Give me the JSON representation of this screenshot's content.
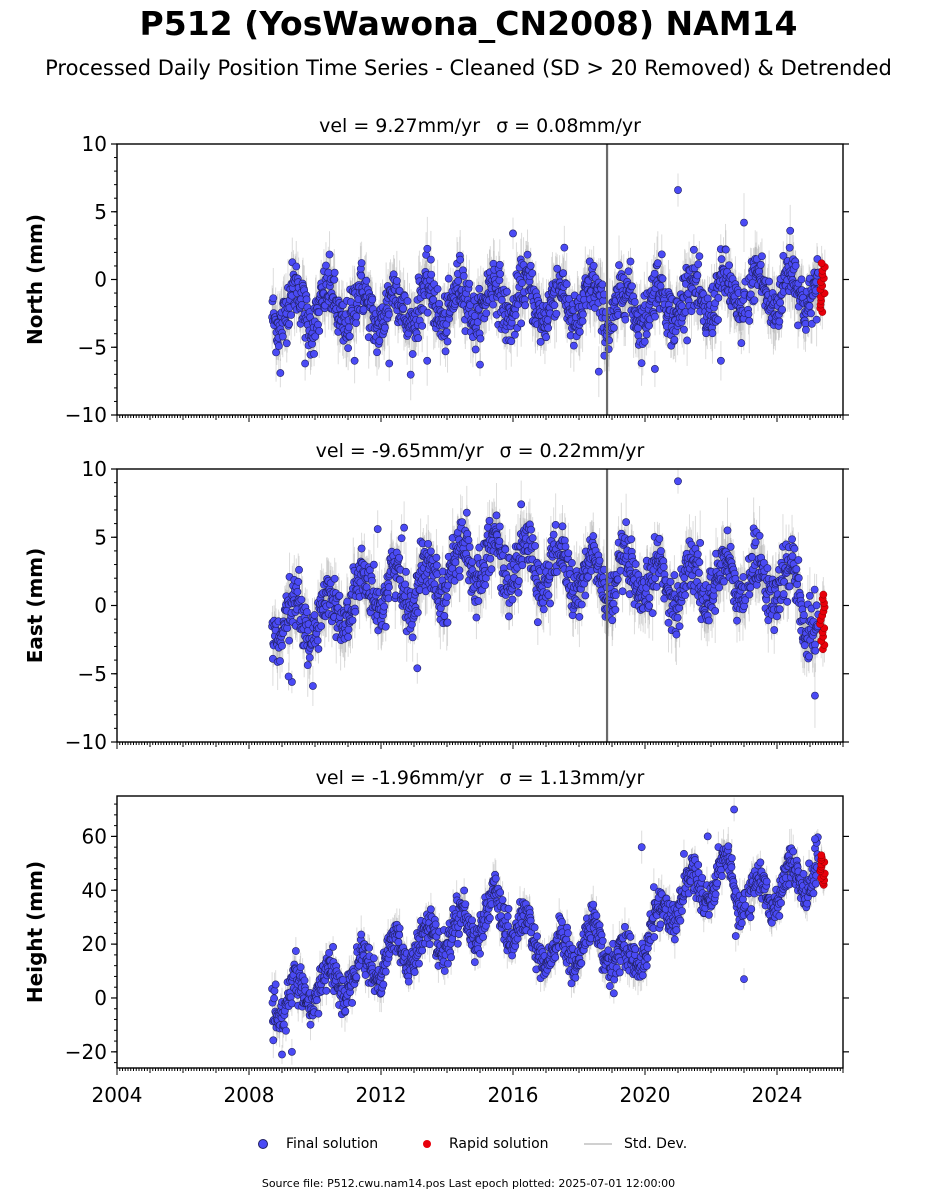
{
  "title": "P512 (YosWawona_CN2008) NAM14",
  "subtitle": "Processed Daily Position Time Series - Cleaned (SD > 20 Removed) & Detrended",
  "colors": {
    "final": "#4a4af5",
    "final_edge": "#202060",
    "rapid": "#e8000b",
    "std": "#9a9a9a",
    "axis": "#000000"
  },
  "legend": {
    "final_label": "Final solution",
    "rapid_label": "Rapid solution",
    "std_label": "Std. Dev."
  },
  "source_note": "Source file: P512.cwu.nam14.pos  Last epoch plotted: 2025-07-01 12:00:00",
  "chart_data": [
    {
      "type": "scatter",
      "panel": "north",
      "title_pre": "vel = 9.27mm/yr",
      "title_sigma": "σ = 0.08mm/yr",
      "ylabel": "North (mm)",
      "xlim": [
        2004.0,
        2026.0
      ],
      "ylim": [
        -10,
        10
      ],
      "yticks": [
        -10,
        -5,
        0,
        5,
        10
      ],
      "yticklabels": [
        "−10",
        "−5",
        "0",
        "5",
        "10"
      ],
      "show_xticklabels": false,
      "series": [
        {
          "role": "final",
          "x_start": 2008.7,
          "x_end": 2025.25,
          "trend_knots": [
            [
              2008.7,
              -2.0
            ],
            [
              2012.0,
              -2.2
            ],
            [
              2016.0,
              -1.5
            ],
            [
              2019.0,
              -2.0
            ],
            [
              2021.5,
              -1.5
            ],
            [
              2025.25,
              -0.5
            ]
          ],
          "seasonal_amplitude": 1.5,
          "noise": 1.0,
          "std_dev": 1.6,
          "outliers": [
            [
              2008.95,
              -6.9
            ],
            [
              2009.7,
              -6.2
            ],
            [
              2011.2,
              -6.0
            ],
            [
              2012.25,
              -6.2
            ],
            [
              2013.4,
              -6.0
            ],
            [
              2018.6,
              -6.8
            ],
            [
              2020.3,
              -6.6
            ],
            [
              2021.0,
              6.6
            ],
            [
              2022.3,
              -6.0
            ],
            [
              2023.0,
              4.2
            ],
            [
              2024.4,
              3.6
            ],
            [
              2016.0,
              3.4
            ]
          ]
        },
        {
          "role": "rapid",
          "x_start": 2025.3,
          "x_end": 2025.45,
          "y_min": -2.4,
          "y_max": 1.2
        }
      ],
      "spike": {
        "x": 2018.85,
        "y_low": -10,
        "y_high": 10
      }
    },
    {
      "type": "scatter",
      "panel": "east",
      "title_pre": "vel = -9.65mm/yr",
      "title_sigma": "σ = 0.22mm/yr",
      "ylabel": "East (mm)",
      "xlim": [
        2004.0,
        2026.0
      ],
      "ylim": [
        -10,
        10
      ],
      "yticks": [
        -10,
        -5,
        0,
        5,
        10
      ],
      "yticklabels": [
        "−10",
        "−5",
        "0",
        "5",
        "10"
      ],
      "show_xticklabels": false,
      "series": [
        {
          "role": "final",
          "x_start": 2008.7,
          "x_end": 2025.25,
          "trend_knots": [
            [
              2008.7,
              -1.2
            ],
            [
              2010.0,
              -1.0
            ],
            [
              2011.5,
              0.8
            ],
            [
              2013.0,
              1.5
            ],
            [
              2015.0,
              3.5
            ],
            [
              2016.5,
              3.0
            ],
            [
              2018.5,
              2.0
            ],
            [
              2021.0,
              1.5
            ],
            [
              2023.0,
              2.0
            ],
            [
              2024.5,
              1.5
            ],
            [
              2025.25,
              -2.0
            ]
          ],
          "seasonal_amplitude": 1.6,
          "noise": 1.0,
          "std_dev": 1.6,
          "outliers": [
            [
              2009.3,
              -5.6
            ],
            [
              2009.2,
              -5.2
            ],
            [
              2011.9,
              5.6
            ],
            [
              2012.7,
              5.7
            ],
            [
              2013.1,
              -4.6
            ],
            [
              2014.6,
              6.8
            ],
            [
              2015.5,
              6.6
            ],
            [
              2021.0,
              9.1
            ],
            [
              2025.15,
              -6.6
            ],
            [
              2022.5,
              5.5
            ],
            [
              2017.5,
              5.8
            ]
          ]
        },
        {
          "role": "rapid",
          "x_start": 2025.3,
          "x_end": 2025.45,
          "y_min": -3.2,
          "y_max": 0.8
        }
      ],
      "spike": {
        "x": 2018.85,
        "y_low": -10,
        "y_high": 10
      }
    },
    {
      "type": "scatter",
      "panel": "height",
      "title_pre": "vel = -1.96mm/yr",
      "title_sigma": "σ = 1.13mm/yr",
      "ylabel": "Height (mm)",
      "xlim": [
        2004.0,
        2026.0
      ],
      "ylim": [
        -26,
        75
      ],
      "yticks": [
        -20,
        0,
        20,
        40,
        60
      ],
      "yticklabels": [
        "−20",
        "0",
        "20",
        "40",
        "60"
      ],
      "xticks": [
        2004,
        2008,
        2012,
        2016,
        2020,
        2024
      ],
      "xticklabels": [
        "2004",
        "2008",
        "2012",
        "2016",
        "2020",
        "2024"
      ],
      "show_xticklabels": true,
      "series": [
        {
          "role": "final",
          "x_start": 2008.7,
          "x_end": 2025.25,
          "trend_knots": [
            [
              2008.7,
              -3.0
            ],
            [
              2010.0,
              3.0
            ],
            [
              2012.0,
              14.0
            ],
            [
              2014.0,
              24.0
            ],
            [
              2015.5,
              32.0
            ],
            [
              2017.2,
              15.0
            ],
            [
              2018.5,
              22.0
            ],
            [
              2019.5,
              12.0
            ],
            [
              2021.0,
              38.0
            ],
            [
              2022.5,
              46.0
            ],
            [
              2023.2,
              36.0
            ],
            [
              2024.5,
              44.0
            ],
            [
              2025.25,
              48.0
            ]
          ],
          "seasonal_amplitude": 7.0,
          "noise": 3.5,
          "std_dev": 5.0,
          "outliers": [
            [
              2009.0,
              -21.0
            ],
            [
              2009.3,
              -20.0
            ],
            [
              2023.0,
              7.0
            ],
            [
              2022.75,
              23.0
            ],
            [
              2022.7,
              70.0
            ],
            [
              2019.9,
              56.0
            ],
            [
              2021.9,
              60.0
            ],
            [
              2025.15,
              59.0
            ]
          ]
        },
        {
          "role": "rapid",
          "x_start": 2025.3,
          "x_end": 2025.45,
          "y_min": 42,
          "y_max": 53
        }
      ]
    }
  ]
}
